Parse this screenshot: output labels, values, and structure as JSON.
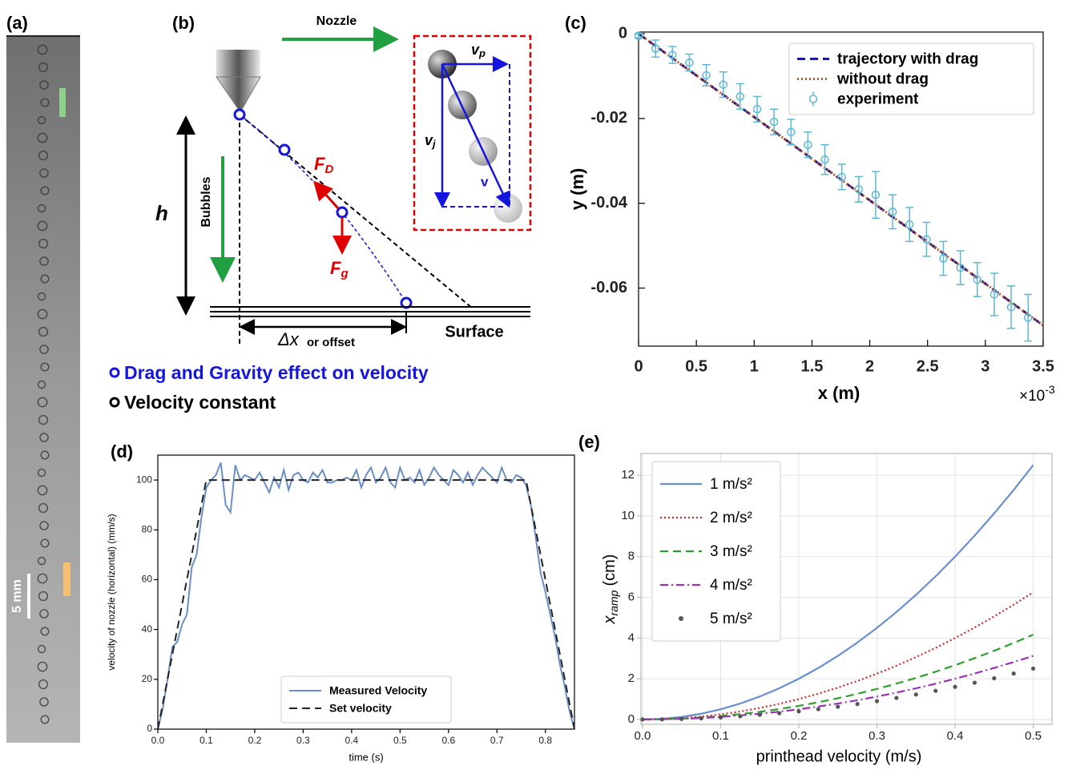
{
  "panels": {
    "a": {
      "label": "(a)",
      "scale_bar": "5 mm"
    },
    "b": {
      "label": "(b)",
      "nozzle": "Nozzle",
      "bubbles": "Bubbles",
      "h": "h",
      "fd": {
        "symbol": "F",
        "sub": "D"
      },
      "fg": {
        "symbol": "F",
        "sub": "g"
      },
      "vp": {
        "symbol": "v",
        "sub": "p"
      },
      "vj": {
        "symbol": "v",
        "sub": "j"
      },
      "v": "v",
      "delta_x": "Δx",
      "delta_x_note": "or offset",
      "surface": "Surface",
      "legend_drag": "Drag and Gravity effect on velocity",
      "legend_constant": "Velocity constant"
    }
  },
  "chart_data": [
    {
      "type": "line",
      "panel_label": "(c)",
      "xlabel": "x (m)",
      "ylabel": "y (m)",
      "x_multiplier": {
        "base": "×10",
        "exponent": "-3"
      },
      "xlim": [
        0,
        3.5
      ],
      "ylim": [
        -0.0737,
        0.0004
      ],
      "xticks": [
        0,
        0.5,
        1,
        1.5,
        2,
        2.5,
        3,
        3.5
      ],
      "yticks": [
        0,
        -0.02,
        -0.04,
        -0.06
      ],
      "grid": false,
      "legend": "upper right",
      "series": [
        {
          "name": "trajectory with drag",
          "color": "#1a1a9c",
          "linestyle": "dashed",
          "x": [
            0,
            3.5
          ],
          "values": [
            0,
            -0.0688
          ]
        },
        {
          "name": "without drag",
          "color": "#c8551a",
          "linestyle": "dotted",
          "x": [
            0,
            3.5
          ],
          "values": [
            0,
            -0.0688
          ]
        },
        {
          "name": "experiment",
          "color": "#5bb8d6",
          "linestyle": "none",
          "marker": "circle",
          "x": [
            0,
            0.147,
            0.293,
            0.44,
            0.586,
            0.733,
            0.879,
            1.026,
            1.172,
            1.319,
            1.465,
            1.612,
            1.758,
            1.905,
            2.051,
            2.198,
            2.344,
            2.491,
            2.637,
            2.784,
            2.93,
            3.077,
            3.223,
            3.37
          ],
          "values": [
            -0.0005,
            -0.0035,
            -0.005,
            -0.0068,
            -0.0098,
            -0.012,
            -0.0148,
            -0.0178,
            -0.0208,
            -0.0232,
            -0.0262,
            -0.0297,
            -0.0338,
            -0.0367,
            -0.038,
            -0.042,
            -0.045,
            -0.0485,
            -0.053,
            -0.0552,
            -0.058,
            -0.0615,
            -0.0645,
            -0.067
          ],
          "errors": [
            0.0005,
            0.002,
            0.002,
            0.002,
            0.0025,
            0.003,
            0.003,
            0.003,
            0.003,
            0.003,
            0.003,
            0.0035,
            0.003,
            0.003,
            0.0055,
            0.004,
            0.004,
            0.004,
            0.004,
            0.004,
            0.004,
            0.005,
            0.005,
            0.0055
          ]
        }
      ]
    },
    {
      "type": "line",
      "panel_label": "(d)",
      "xlabel": "time (s)",
      "ylabel": "velocity of nozzle (horizontal) (mm/s)",
      "xlim": [
        0,
        0.86
      ],
      "ylim": [
        0,
        110
      ],
      "xticks": [
        {
          "value": 0,
          "label": "0.0"
        },
        {
          "value": 0.1,
          "label": "0.1"
        },
        {
          "value": 0.2,
          "label": "0.2"
        },
        {
          "value": 0.3,
          "label": "0.3"
        },
        {
          "value": 0.4,
          "label": "0.4"
        },
        {
          "value": 0.5,
          "label": "0.5"
        },
        {
          "value": 0.6,
          "label": "0.6"
        },
        {
          "value": 0.7,
          "label": "0.7"
        },
        {
          "value": 0.8,
          "label": "0.8"
        }
      ],
      "yticks": [
        0,
        20,
        40,
        60,
        80,
        100
      ],
      "grid": false,
      "legend": "lower center",
      "series": [
        {
          "name": "Measured Velocity",
          "color": "#6a8fc8",
          "linestyle": "solid",
          "x": [
            0,
            0.01,
            0.02,
            0.03,
            0.04,
            0.05,
            0.06,
            0.07,
            0.08,
            0.09,
            0.1,
            0.11,
            0.12,
            0.13,
            0.14,
            0.15,
            0.16,
            0.17,
            0.18,
            0.19,
            0.2,
            0.21,
            0.22,
            0.23,
            0.24,
            0.25,
            0.26,
            0.27,
            0.28,
            0.29,
            0.3,
            0.31,
            0.32,
            0.33,
            0.34,
            0.35,
            0.36,
            0.37,
            0.38,
            0.39,
            0.4,
            0.41,
            0.42,
            0.43,
            0.44,
            0.45,
            0.46,
            0.47,
            0.48,
            0.49,
            0.5,
            0.51,
            0.52,
            0.53,
            0.54,
            0.55,
            0.56,
            0.57,
            0.58,
            0.59,
            0.6,
            0.61,
            0.62,
            0.63,
            0.64,
            0.65,
            0.66,
            0.67,
            0.68,
            0.69,
            0.7,
            0.71,
            0.72,
            0.73,
            0.74,
            0.75,
            0.76,
            0.77,
            0.78,
            0.79,
            0.8,
            0.81,
            0.82,
            0.83,
            0.84,
            0.85,
            0.86
          ],
          "values": [
            0,
            8,
            20,
            33,
            35,
            42,
            46,
            65,
            70,
            85,
            97,
            100,
            102,
            107,
            90,
            87,
            106,
            100,
            102,
            101,
            100,
            103,
            99,
            95,
            101,
            97,
            104,
            96,
            102,
            103,
            100,
            99,
            103,
            101,
            104,
            99,
            99,
            100,
            100,
            101,
            100,
            104,
            97,
            102,
            105,
            99,
            101,
            105,
            99,
            97,
            105,
            100,
            101,
            99,
            104,
            98,
            101,
            105,
            102,
            100,
            98,
            104,
            102,
            99,
            103,
            98,
            102,
            105,
            103,
            101,
            99,
            105,
            100,
            99,
            102,
            101,
            98,
            90,
            77,
            63,
            55,
            46,
            37,
            26,
            17,
            7,
            0
          ]
        },
        {
          "name": "Set velocity",
          "color": "#222222",
          "linestyle": "dashed",
          "x": [
            0,
            0.1,
            0.76,
            0.86
          ],
          "values": [
            0,
            100,
            100,
            0
          ]
        }
      ]
    },
    {
      "type": "line",
      "panel_label": "(e)",
      "xlabel": "printhead velocity (m/s)",
      "ylabel": {
        "symbol": "x",
        "sub": "ramp",
        "unit": "(cm)"
      },
      "xlim": [
        -0.002,
        0.524
      ],
      "ylim": [
        -0.24,
        13.07
      ],
      "xticks": [
        {
          "value": 0,
          "label": "0.0"
        },
        {
          "value": 0.1,
          "label": "0.1"
        },
        {
          "value": 0.2,
          "label": "0.2"
        },
        {
          "value": 0.3,
          "label": "0.3"
        },
        {
          "value": 0.4,
          "label": "0.4"
        },
        {
          "value": 0.5,
          "label": "0.5"
        }
      ],
      "yticks": [
        0,
        2,
        4,
        6,
        8,
        10,
        12
      ],
      "grid": true,
      "legend": "upper left",
      "series": [
        {
          "name": "1 m/s²",
          "color": "#6a8fd0",
          "linestyle": "solid",
          "x": [
            0,
            0.025,
            0.05,
            0.075,
            0.1,
            0.125,
            0.15,
            0.175,
            0.2,
            0.225,
            0.25,
            0.275,
            0.3,
            0.325,
            0.35,
            0.375,
            0.4,
            0.425,
            0.45,
            0.475,
            0.5
          ],
          "values": [
            0,
            0.031,
            0.125,
            0.281,
            0.5,
            0.781,
            1.125,
            1.531,
            2,
            2.531,
            3.125,
            3.781,
            4.5,
            5.281,
            6.125,
            7.031,
            8,
            9.031,
            10.125,
            11.281,
            12.5
          ]
        },
        {
          "name": "2 m/s²",
          "color": "#d62728",
          "linestyle": "dotted",
          "x": [
            0,
            0.025,
            0.05,
            0.075,
            0.1,
            0.125,
            0.15,
            0.175,
            0.2,
            0.225,
            0.25,
            0.275,
            0.3,
            0.325,
            0.35,
            0.375,
            0.4,
            0.425,
            0.45,
            0.475,
            0.5
          ],
          "values": [
            0,
            0.016,
            0.063,
            0.141,
            0.25,
            0.391,
            0.563,
            0.766,
            1,
            1.266,
            1.563,
            1.891,
            2.25,
            2.641,
            3.063,
            3.516,
            4,
            4.516,
            5.063,
            5.641,
            6.25
          ]
        },
        {
          "name": "3 m/s²",
          "color": "#2ca02c",
          "linestyle": "dashed",
          "x": [
            0,
            0.025,
            0.05,
            0.075,
            0.1,
            0.125,
            0.15,
            0.175,
            0.2,
            0.225,
            0.25,
            0.275,
            0.3,
            0.325,
            0.35,
            0.375,
            0.4,
            0.425,
            0.45,
            0.475,
            0.5
          ],
          "values": [
            0,
            0.01,
            0.042,
            0.094,
            0.167,
            0.26,
            0.375,
            0.51,
            0.667,
            0.844,
            1.042,
            1.26,
            1.5,
            1.76,
            2.042,
            2.344,
            2.667,
            3.01,
            3.375,
            3.76,
            4.167
          ]
        },
        {
          "name": "4 m/s²",
          "color": "#9b30b8",
          "linestyle": "dashdot",
          "x": [
            0,
            0.025,
            0.05,
            0.075,
            0.1,
            0.125,
            0.15,
            0.175,
            0.2,
            0.225,
            0.25,
            0.275,
            0.3,
            0.325,
            0.35,
            0.375,
            0.4,
            0.425,
            0.45,
            0.475,
            0.5
          ],
          "values": [
            0,
            0.008,
            0.031,
            0.07,
            0.125,
            0.195,
            0.281,
            0.383,
            0.5,
            0.633,
            0.781,
            0.945,
            1.125,
            1.32,
            1.531,
            1.758,
            2,
            2.258,
            2.531,
            2.82,
            3.125
          ]
        },
        {
          "name": "5 m/s²",
          "color": "#555555",
          "linestyle": "none",
          "marker": "dot",
          "x": [
            0,
            0.025,
            0.05,
            0.075,
            0.1,
            0.125,
            0.15,
            0.175,
            0.2,
            0.225,
            0.25,
            0.275,
            0.3,
            0.325,
            0.35,
            0.375,
            0.4,
            0.425,
            0.45,
            0.475,
            0.5
          ],
          "values": [
            0,
            0.006,
            0.025,
            0.056,
            0.1,
            0.156,
            0.225,
            0.306,
            0.4,
            0.506,
            0.625,
            0.756,
            0.9,
            1.056,
            1.225,
            1.406,
            1.6,
            1.806,
            2.025,
            2.256,
            2.5
          ]
        }
      ]
    }
  ]
}
